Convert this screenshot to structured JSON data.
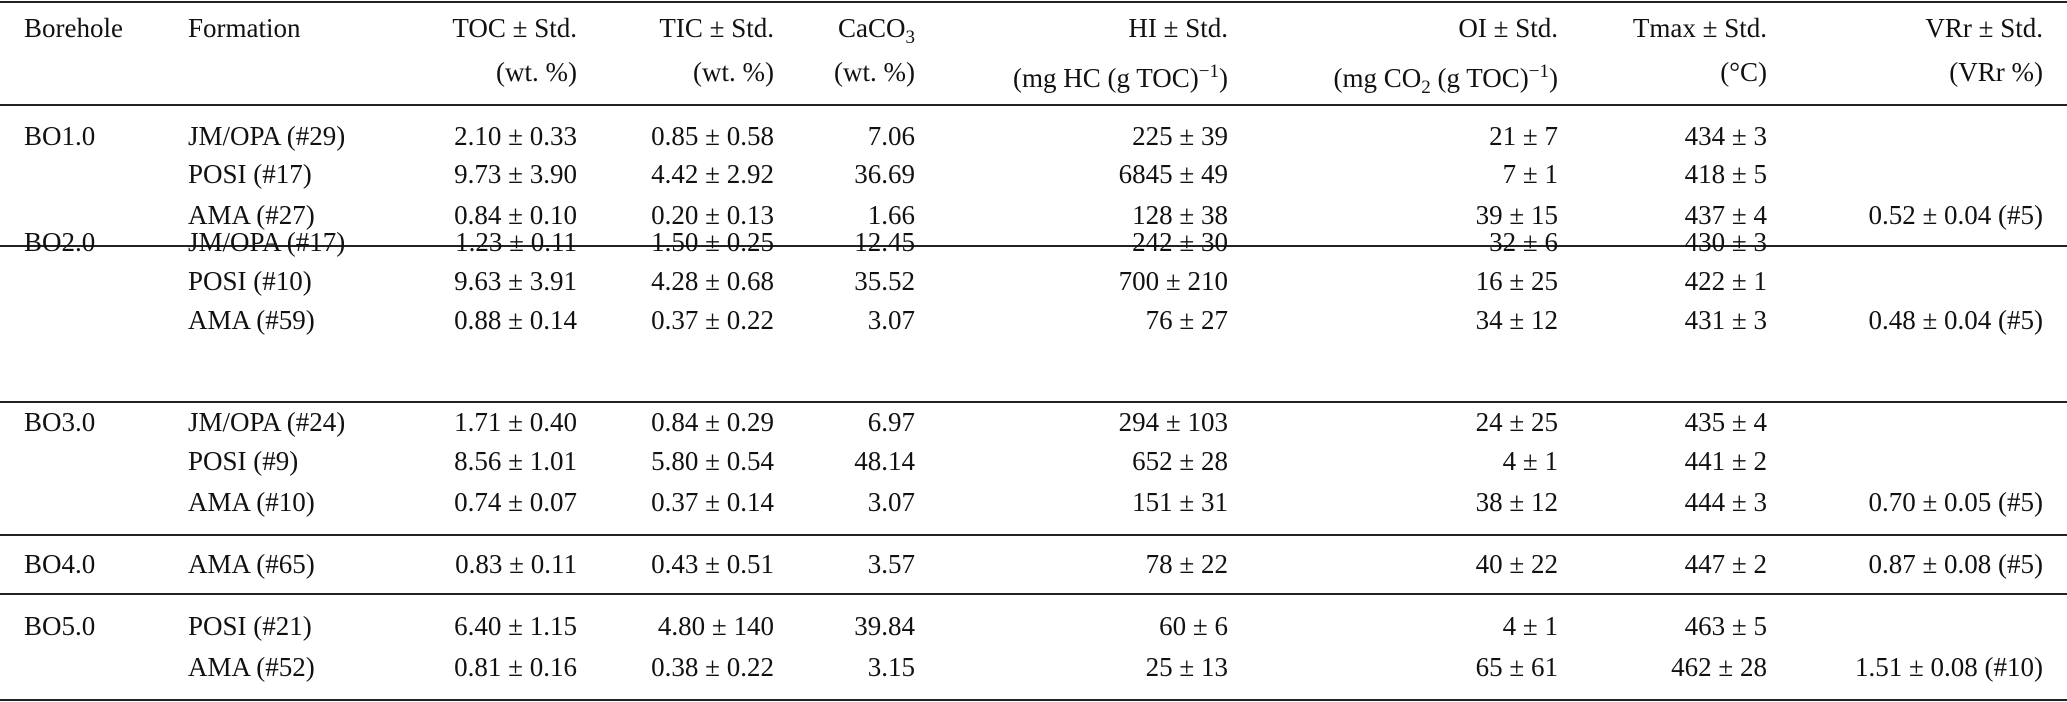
{
  "table": {
    "header": [
      [
        "Borehole"
      ],
      [
        "Formation"
      ],
      [
        "TOC ± Std.",
        "(wt. %)"
      ],
      [
        "TIC ± Std.",
        "(wt. %)"
      ],
      [
        [
          "CaCO",
          "3"
        ],
        "(wt. %)"
      ],
      [
        "HI ± Std.",
        [
          "(mg HC (g TOC)",
          "−1",
          ")"
        ]
      ],
      [
        "OI ± Std.",
        [
          "(mg CO",
          "2",
          " (g TOC)",
          "−1",
          ")"
        ]
      ],
      [
        "Tmax ± Std.",
        "(°C)"
      ],
      [
        "VRr ± Std.",
        "(VRr %)"
      ]
    ],
    "groups": [
      {
        "borehole": "BO1.0",
        "rows": [
          [
            "JM/OPA (#29)",
            "2.10 ± 0.33",
            "0.85 ± 0.58",
            "7.06",
            "225 ± 39",
            "21 ± 7",
            "434 ± 3",
            null
          ],
          [
            "POSI (#17)",
            "9.73 ± 3.90",
            "4.42 ± 2.92",
            "36.69",
            "6845 ± 49",
            "7 ± 1",
            "418 ± 5",
            null
          ],
          [
            "AMA (#27)",
            "0.84 ± 0.10",
            "0.20 ± 0.13",
            "1.66",
            "128 ± 38",
            "39 ± 15",
            "437 ± 4",
            "0.52 ± 0.04 (#5)"
          ]
        ]
      },
      {
        "borehole": "BO2.0",
        "rows": [
          [
            "JM/OPA (#17)",
            "1.23 ± 0.11",
            "1.50 ± 0.25",
            "12.45",
            "242 ± 30",
            "32 ± 6",
            "430 ± 3",
            null
          ],
          [
            "POSI (#10)",
            "9.63 ± 3.91",
            "4.28 ± 0.68",
            "35.52",
            "700 ± 210",
            "16 ± 25",
            "422 ± 1",
            null
          ],
          [
            "AMA (#59)",
            "0.88 ± 0.14",
            "0.37 ± 0.22",
            "3.07",
            "76 ± 27",
            "34 ± 12",
            "431 ± 3",
            "0.48 ± 0.04 (#5)"
          ]
        ]
      },
      {
        "borehole": "BO3.0",
        "rows": [
          [
            "JM/OPA (#24)",
            "1.71 ± 0.40",
            "0.84 ± 0.29",
            "6.97",
            "294 ± 103",
            "24 ± 25",
            "435 ± 4",
            null
          ],
          [
            "POSI (#9)",
            "8.56 ± 1.01",
            "5.80 ± 0.54",
            "48.14",
            "652 ± 28",
            "4 ± 1",
            "441 ± 2",
            null
          ],
          [
            "AMA (#10)",
            "0.74 ± 0.07",
            "0.37 ± 0.14",
            "3.07",
            "151 ± 31",
            "38 ± 12",
            "444 ± 3",
            "0.70 ± 0.05 (#5)"
          ]
        ]
      },
      {
        "borehole": "BO4.0",
        "rows": [
          [
            "AMA (#65)",
            "0.83 ± 0.11",
            "0.43 ± 0.51",
            "3.57",
            "78 ± 22",
            "40 ± 22",
            "447 ± 2",
            "0.87 ± 0.08 (#5)"
          ]
        ]
      },
      {
        "borehole": "BO5.0",
        "rows": [
          [
            "POSI (#21)",
            "6.40 ± 1.15",
            "4.80 ± 140",
            "39.84",
            "60 ± 6",
            "4 ± 1",
            "463 ± 5",
            null
          ],
          [
            "AMA (#52)",
            "0.81 ± 0.16",
            "0.38 ± 0.22",
            "3.15",
            "25 ± 13",
            "65 ± 61",
            "462 ± 28",
            "1.51 ± 0.08 (#10)"
          ]
        ]
      }
    ]
  }
}
